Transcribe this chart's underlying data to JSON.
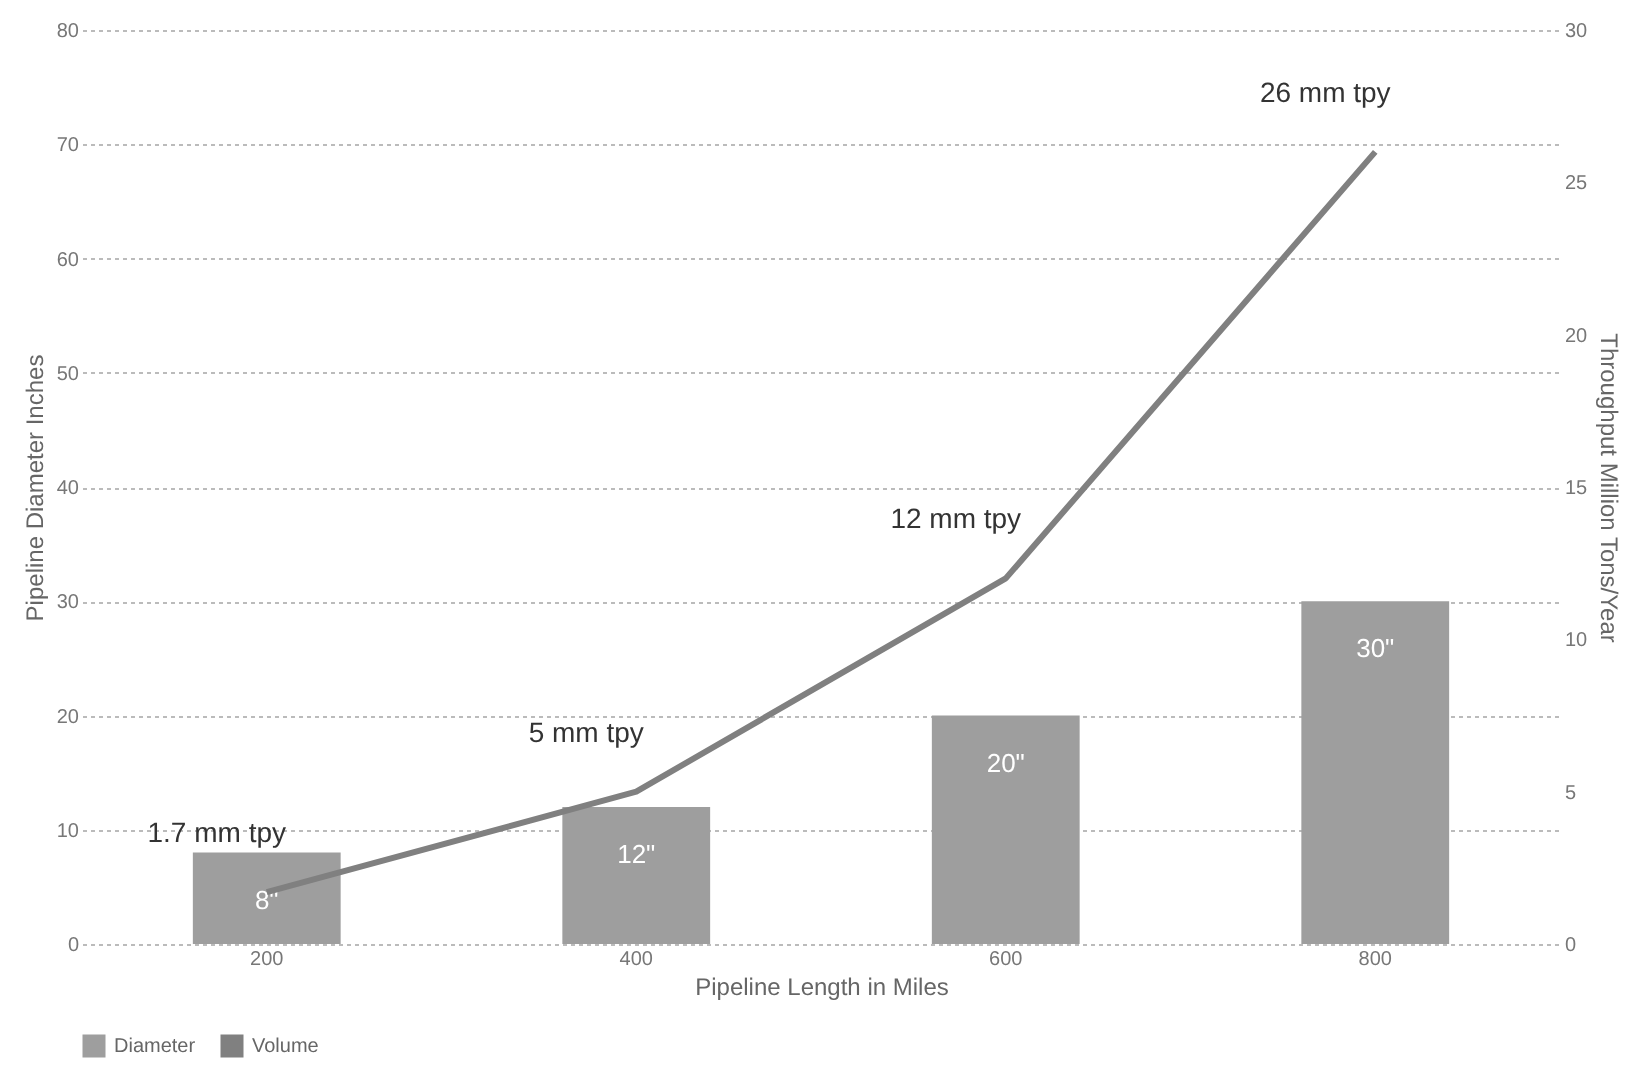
{
  "chart_data": {
    "type": "bar",
    "xlabel": "Pipeline Length in Miles",
    "ylabel": "Pipeline Diameter Inches",
    "y2label": "Throughput Million Tons/Year",
    "categories": [
      "200",
      "400",
      "600",
      "800"
    ],
    "series": [
      {
        "name": "Diameter",
        "color": "#9e9e9e",
        "values": [
          8,
          12,
          20,
          30
        ],
        "value_labels": [
          "8\"",
          "12\"",
          "20\"",
          "30\""
        ]
      },
      {
        "name": "Volume",
        "type": "line",
        "axis": "y2",
        "color": "#808080",
        "values": [
          1.7,
          5,
          12,
          26
        ],
        "value_labels": [
          "1.7 mm tpy",
          "5 mm tpy",
          "12 mm tpy",
          "26 mm tpy"
        ]
      }
    ],
    "ylim": [
      0,
      80
    ],
    "yticks": [
      0,
      10,
      20,
      30,
      40,
      50,
      60,
      70,
      80
    ],
    "y2lim": [
      0,
      30
    ],
    "y2ticks": [
      0,
      5,
      10,
      15,
      20,
      25,
      30
    ],
    "grid": "y",
    "legend": "bottom",
    "marker": "none",
    "line_style": "solid"
  }
}
